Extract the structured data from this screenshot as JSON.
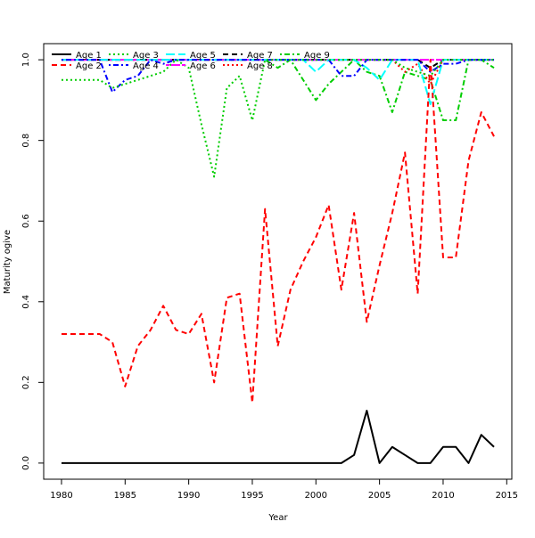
{
  "chart_data": {
    "type": "line",
    "title": "",
    "xlabel": "Year",
    "ylabel": "Maturity ogive",
    "xlim": [
      1978.6,
      2015.4
    ],
    "ylim": [
      -0.04,
      1.04
    ],
    "x_ticks": [
      1980,
      1985,
      1990,
      1995,
      2000,
      2005,
      2010,
      2015
    ],
    "y_ticks": [
      0.0,
      0.2,
      0.4,
      0.6,
      0.8,
      1.0
    ],
    "x_tick_labels": [
      "1980",
      "1985",
      "1990",
      "1995",
      "2000",
      "2005",
      "2010",
      "2015"
    ],
    "y_tick_labels": [
      "0.0",
      "0.2",
      "0.4",
      "0.6",
      "0.8",
      "1.0"
    ],
    "grid": false,
    "legend_position": "top-left",
    "x": [
      1980,
      1981,
      1982,
      1983,
      1984,
      1985,
      1986,
      1987,
      1988,
      1989,
      1990,
      1991,
      1992,
      1993,
      1994,
      1995,
      1996,
      1997,
      1998,
      1999,
      2000,
      2001,
      2002,
      2003,
      2004,
      2005,
      2006,
      2007,
      2008,
      2009,
      2010,
      2011,
      2012,
      2013,
      2014
    ],
    "series": [
      {
        "name": "Age 1",
        "color": "#000000",
        "dash": "solid",
        "values": [
          0,
          0,
          0,
          0,
          0,
          0,
          0,
          0,
          0,
          0,
          0,
          0,
          0,
          0,
          0,
          0,
          0,
          0,
          0,
          0,
          0,
          0,
          0,
          0.02,
          0.13,
          0,
          0.04,
          0.02,
          0,
          0,
          0.04,
          0.04,
          0,
          0.07,
          0.04
        ]
      },
      {
        "name": "Age 2",
        "color": "#ff0000",
        "dash": "dashed",
        "values": [
          0.32,
          0.32,
          0.32,
          0.32,
          0.3,
          0.19,
          0.29,
          0.33,
          0.39,
          0.33,
          0.32,
          0.37,
          0.2,
          0.41,
          0.42,
          0.15,
          0.63,
          0.29,
          0.43,
          0.5,
          0.56,
          0.64,
          0.43,
          0.62,
          0.35,
          0.49,
          0.62,
          0.77,
          0.42,
          1.0,
          0.51,
          0.51,
          0.75,
          0.87,
          0.81
        ]
      },
      {
        "name": "Age 3",
        "color": "#00cd00",
        "dash": "dotted",
        "values": [
          0.95,
          0.95,
          0.95,
          0.95,
          0.93,
          0.94,
          0.95,
          0.96,
          0.97,
          1.0,
          0.98,
          0.84,
          0.71,
          0.93,
          0.96,
          0.85,
          1.0,
          1.0,
          1.0,
          1.0,
          1.0,
          1.0,
          1.0,
          1.0,
          1.0,
          1.0,
          1.0,
          0.98,
          0.97,
          0.96,
          1.0,
          1.0,
          1.0,
          1.0,
          1.0
        ]
      },
      {
        "name": "Age 4",
        "color": "#0000ff",
        "dash": "dashdot",
        "values": [
          1.0,
          1.0,
          1.0,
          1.0,
          0.92,
          0.95,
          0.96,
          1.0,
          0.99,
          1.0,
          1.0,
          1.0,
          1.0,
          1.0,
          1.0,
          1.0,
          1.0,
          1.0,
          1.0,
          1.0,
          1.0,
          1.0,
          0.96,
          0.96,
          1.0,
          1.0,
          1.0,
          1.0,
          1.0,
          0.97,
          0.99,
          0.99,
          1.0,
          1.0,
          1.0
        ]
      },
      {
        "name": "Age 5",
        "color": "#00ffff",
        "dash": "longdash",
        "values": [
          1.0,
          1.0,
          1.0,
          1.0,
          1.0,
          1.0,
          1.0,
          1.0,
          1.0,
          1.0,
          1.0,
          1.0,
          1.0,
          1.0,
          1.0,
          1.0,
          1.0,
          1.0,
          1.0,
          1.0,
          0.97,
          1.0,
          1.0,
          1.0,
          0.98,
          0.95,
          1.0,
          1.0,
          1.0,
          0.89,
          1.0,
          1.0,
          1.0,
          1.0,
          1.0
        ]
      },
      {
        "name": "Age 6",
        "color": "#ff00ff",
        "dash": "twodash",
        "values": [
          1,
          1,
          1,
          1,
          1,
          1,
          1,
          1,
          1,
          1,
          1,
          1,
          1,
          1,
          1,
          1,
          1,
          1,
          1,
          1,
          1,
          1,
          1,
          1,
          1,
          1,
          1,
          1,
          1,
          1,
          1,
          1,
          1,
          1,
          1
        ]
      },
      {
        "name": "Age 7",
        "color": "#000000",
        "dash": "dashed",
        "values": [
          1,
          1,
          1,
          1,
          1,
          1,
          1,
          1,
          1,
          1,
          1,
          1,
          1,
          1,
          1,
          1,
          1,
          1,
          1,
          1,
          1,
          1,
          1,
          1,
          1,
          1,
          1,
          1,
          1,
          0.98,
          1,
          1,
          1,
          1,
          1
        ]
      },
      {
        "name": "Age 8",
        "color": "#ff0000",
        "dash": "dotted",
        "values": [
          1.0,
          1.0,
          1.0,
          1.0,
          1.0,
          1.0,
          1.0,
          1.0,
          1.0,
          1.0,
          1.0,
          1.0,
          1.0,
          1.0,
          1.0,
          1.0,
          1.0,
          1.0,
          1.0,
          1.0,
          1.0,
          1.0,
          1.0,
          1.0,
          1.0,
          1.0,
          1.0,
          0.97,
          0.99,
          0.94,
          1.0,
          1.0,
          1.0,
          1.0,
          1.0
        ]
      },
      {
        "name": "Age 9",
        "color": "#00cd00",
        "dash": "dashdot",
        "values": [
          1.0,
          1.0,
          1.0,
          1.0,
          1.0,
          1.0,
          1.0,
          1.0,
          1.0,
          1.0,
          1.0,
          1.0,
          1.0,
          1.0,
          1.0,
          1.0,
          1.0,
          0.98,
          1.0,
          0.95,
          0.9,
          0.94,
          0.97,
          1.0,
          0.97,
          0.96,
          0.87,
          0.97,
          0.96,
          0.95,
          0.85,
          0.85,
          1.0,
          1.0,
          0.98
        ]
      }
    ]
  }
}
